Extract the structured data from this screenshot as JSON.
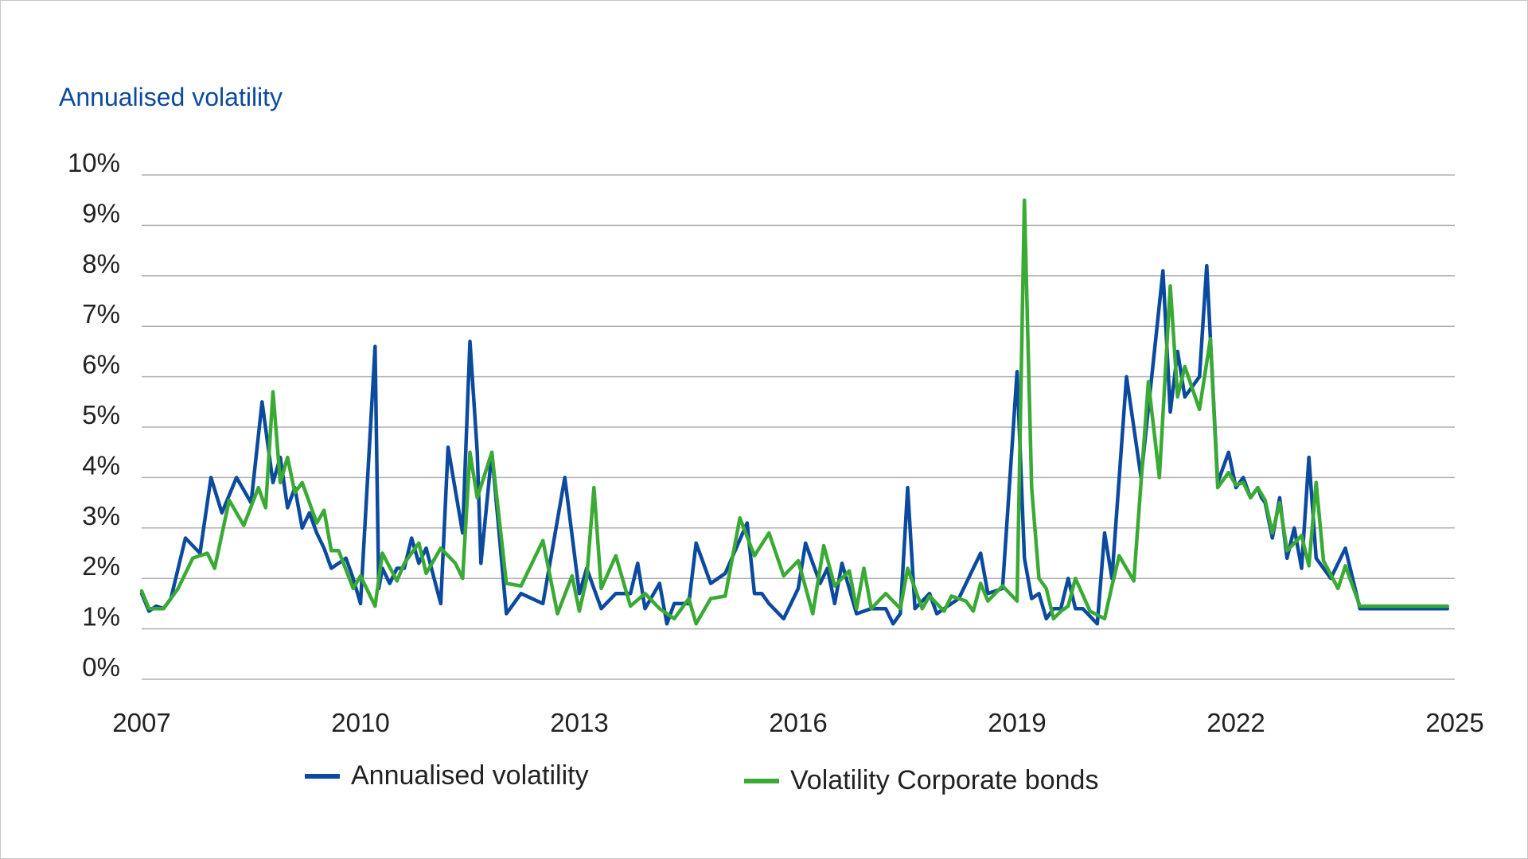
{
  "chart_data": {
    "type": "line",
    "title": "Annualised volatility",
    "xlabel": "",
    "ylabel": "Annualised volatility",
    "xlim": [
      2007,
      2025
    ],
    "ylim": [
      0,
      10
    ],
    "x_ticks": [
      "2007",
      "2010",
      "2013",
      "2016",
      "2019",
      "2022",
      "2025"
    ],
    "y_ticks": [
      "0%",
      "1%",
      "2%",
      "3%",
      "4%",
      "5%",
      "6%",
      "7%",
      "8%",
      "9%",
      "10%"
    ],
    "grid": true,
    "legend_position": "bottom",
    "series": [
      {
        "name": "Annualised volatility",
        "color": "#0b4a9e",
        "x": [
          2007.0,
          2007.1,
          2007.2,
          2007.3,
          2007.4,
          2007.6,
          2007.8,
          2007.95,
          2008.1,
          2008.3,
          2008.5,
          2008.65,
          2008.8,
          2008.9,
          2009.0,
          2009.1,
          2009.2,
          2009.3,
          2009.4,
          2009.5,
          2009.6,
          2009.8,
          2009.9,
          2010.0,
          2010.2,
          2010.25,
          2010.3,
          2010.4,
          2010.5,
          2010.6,
          2010.7,
          2010.8,
          2010.9,
          2011.1,
          2011.2,
          2011.4,
          2011.5,
          2011.6,
          2011.65,
          2011.8,
          2012.0,
          2012.2,
          2012.5,
          2012.8,
          2013.0,
          2013.1,
          2013.2,
          2013.3,
          2013.5,
          2013.7,
          2013.8,
          2013.9,
          2014.1,
          2014.2,
          2014.3,
          2014.5,
          2014.6,
          2014.8,
          2015.0,
          2015.3,
          2015.4,
          2015.5,
          2015.6,
          2015.8,
          2016.0,
          2016.1,
          2016.3,
          2016.4,
          2016.5,
          2016.6,
          2016.8,
          2017.0,
          2017.2,
          2017.3,
          2017.4,
          2017.5,
          2017.6,
          2017.8,
          2017.9,
          2018.0,
          2018.2,
          2018.4,
          2018.5,
          2018.6,
          2018.8,
          2019.0,
          2019.1,
          2019.2,
          2019.3,
          2019.4,
          2019.5,
          2019.6,
          2019.7,
          2019.8,
          2019.9,
          2020.1,
          2020.2,
          2020.3,
          2020.5,
          2020.7,
          2021.0,
          2021.1,
          2021.2,
          2021.3,
          2021.5,
          2021.6,
          2021.75,
          2021.9,
          2022.0,
          2022.1,
          2022.2,
          2022.3,
          2022.35,
          2022.4,
          2022.5,
          2022.6,
          2022.7,
          2022.8,
          2022.9,
          2023.0,
          2023.1,
          2023.3,
          2023.5,
          2023.7,
          2023.8,
          2024.0,
          2024.1,
          2024.3,
          2024.5,
          2024.6,
          2024.7,
          2024.9
        ],
        "values": [
          1.7,
          1.35,
          1.45,
          1.4,
          1.6,
          2.8,
          2.5,
          4.0,
          3.3,
          4.0,
          3.5,
          5.5,
          3.9,
          4.4,
          3.4,
          3.8,
          3.0,
          3.3,
          2.9,
          2.6,
          2.2,
          2.4,
          2.0,
          1.5,
          6.6,
          1.8,
          2.2,
          1.9,
          2.2,
          2.2,
          2.8,
          2.3,
          2.6,
          1.5,
          4.6,
          2.9,
          6.7,
          4.5,
          2.3,
          4.5,
          1.3,
          1.7,
          1.5,
          4.0,
          1.7,
          2.2,
          1.8,
          1.4,
          1.7,
          1.7,
          2.3,
          1.4,
          1.9,
          1.1,
          1.5,
          1.5,
          2.7,
          1.9,
          2.1,
          3.1,
          1.7,
          1.7,
          1.5,
          1.2,
          1.8,
          2.7,
          1.9,
          2.2,
          1.5,
          2.3,
          1.3,
          1.4,
          1.4,
          1.1,
          1.3,
          3.8,
          1.4,
          1.7,
          1.3,
          1.4,
          1.6,
          2.2,
          2.5,
          1.7,
          1.8,
          6.1,
          2.4,
          1.6,
          1.7,
          1.2,
          1.4,
          1.4,
          2.0,
          1.4,
          1.4,
          1.1,
          2.9,
          2.0,
          6.0,
          4.0,
          8.1,
          5.3,
          6.5,
          5.6,
          6.0,
          8.2,
          3.9,
          4.5,
          3.8,
          4.0,
          3.6,
          3.8,
          3.6,
          3.5,
          2.8,
          3.6,
          2.4,
          3.0,
          2.2,
          4.4,
          2.4,
          2.0,
          2.6,
          1.4,
          1.4,
          1.4,
          1.4,
          1.4,
          1.4,
          1.4,
          1.4,
          1.4
        ]
      },
      {
        "name": "Volatility Corporate bonds",
        "color": "#3aaa35",
        "x": [
          2007.0,
          2007.1,
          2007.3,
          2007.5,
          2007.7,
          2007.9,
          2008.0,
          2008.2,
          2008.4,
          2008.6,
          2008.7,
          2008.8,
          2008.9,
          2009.0,
          2009.1,
          2009.2,
          2009.4,
          2009.5,
          2009.6,
          2009.7,
          2009.9,
          2010.0,
          2010.2,
          2010.3,
          2010.5,
          2010.6,
          2010.8,
          2010.9,
          2011.1,
          2011.3,
          2011.4,
          2011.5,
          2011.6,
          2011.8,
          2012.0,
          2012.2,
          2012.5,
          2012.7,
          2012.9,
          2013.0,
          2013.1,
          2013.2,
          2013.3,
          2013.5,
          2013.7,
          2013.9,
          2014.1,
          2014.3,
          2014.5,
          2014.6,
          2014.8,
          2015.0,
          2015.2,
          2015.4,
          2015.6,
          2015.8,
          2016.0,
          2016.2,
          2016.35,
          2016.5,
          2016.7,
          2016.8,
          2016.9,
          2017.0,
          2017.2,
          2017.4,
          2017.5,
          2017.7,
          2017.8,
          2018.0,
          2018.1,
          2018.3,
          2018.4,
          2018.5,
          2018.6,
          2018.8,
          2019.0,
          2019.1,
          2019.2,
          2019.3,
          2019.4,
          2019.5,
          2019.6,
          2019.7,
          2019.8,
          2020.0,
          2020.2,
          2020.3,
          2020.4,
          2020.6,
          2020.8,
          2020.95,
          2021.1,
          2021.2,
          2021.3,
          2021.5,
          2021.65,
          2021.75,
          2021.9,
          2022.0,
          2022.1,
          2022.2,
          2022.3,
          2022.4,
          2022.5,
          2022.6,
          2022.7,
          2022.9,
          2023.0,
          2023.1,
          2023.2,
          2023.4,
          2023.5,
          2023.7,
          2023.8,
          2024.0,
          2024.1,
          2024.3,
          2024.4,
          2024.6,
          2024.7,
          2024.9
        ],
        "values": [
          1.75,
          1.4,
          1.4,
          1.8,
          2.4,
          2.5,
          2.2,
          3.55,
          3.05,
          3.8,
          3.4,
          5.7,
          3.9,
          4.4,
          3.7,
          3.9,
          3.1,
          3.35,
          2.55,
          2.55,
          1.8,
          2.05,
          1.45,
          2.5,
          1.95,
          2.3,
          2.7,
          2.1,
          2.6,
          2.3,
          2.0,
          4.5,
          3.6,
          4.5,
          1.9,
          1.85,
          2.75,
          1.3,
          2.05,
          1.35,
          2.0,
          3.8,
          1.8,
          2.45,
          1.45,
          1.7,
          1.4,
          1.2,
          1.6,
          1.1,
          1.6,
          1.65,
          3.2,
          2.45,
          2.9,
          2.05,
          2.35,
          1.3,
          2.65,
          1.85,
          2.15,
          1.4,
          2.2,
          1.4,
          1.7,
          1.4,
          2.2,
          1.4,
          1.65,
          1.35,
          1.65,
          1.55,
          1.35,
          1.9,
          1.55,
          1.85,
          1.55,
          9.5,
          3.8,
          2.0,
          1.8,
          1.2,
          1.35,
          1.45,
          2.0,
          1.35,
          1.2,
          1.85,
          2.45,
          1.95,
          5.9,
          4.0,
          7.8,
          5.6,
          6.2,
          5.35,
          6.75,
          3.8,
          4.1,
          3.85,
          3.9,
          3.6,
          3.8,
          3.55,
          2.9,
          3.5,
          2.55,
          2.85,
          2.25,
          3.9,
          2.35,
          1.8,
          2.25,
          1.45,
          1.45,
          1.45,
          1.45,
          1.45,
          1.45,
          1.45,
          1.45,
          1.45
        ]
      }
    ]
  }
}
